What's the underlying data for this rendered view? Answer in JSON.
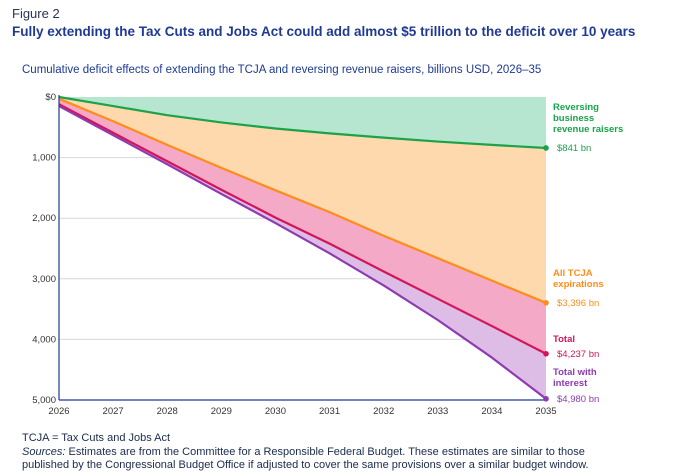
{
  "figure_label": "Figure 2",
  "title": "Fully extending the Tax Cuts and Jobs Act could add almost $5 trillion to the deficit over 10 years",
  "subtitle": "Cumulative deficit effects of extending the TCJA and reversing revenue raisers, billions USD, 2026–35",
  "note": "TCJA = Tax Cuts and Jobs Act",
  "sources_lead": "Sources:",
  "sources_line1": " Estimates are from the Committee for a Responsible Federal Budget. These estimates are similar to those",
  "sources_line2": "published by the Congressional Budget Office if adjusted to cover the same provisions over a similar budget window.",
  "chart_data": {
    "type": "area",
    "x": [
      2026,
      2027,
      2028,
      2029,
      2030,
      2031,
      2032,
      2033,
      2034,
      2035
    ],
    "y_tick_labels": [
      "$0",
      "1,000",
      "2,000",
      "3,000",
      "4,000",
      "5,000"
    ],
    "y_tick_values": [
      0,
      1000,
      2000,
      3000,
      4000,
      5000
    ],
    "ylim": [
      0,
      5000
    ],
    "y_inverted": true,
    "series": [
      {
        "name": "Reversing business revenue raisers",
        "label_lines": [
          "Reversing",
          "business",
          "revenue raisers"
        ],
        "end_label": "$841 bn",
        "color": "#1aa34a",
        "fill": "#b6e6cf",
        "values": [
          0,
          150,
          300,
          420,
          520,
          600,
          670,
          735,
          790,
          841
        ]
      },
      {
        "name": "All TCJA expirations",
        "label_lines": [
          "All TCJA",
          "expirations"
        ],
        "end_label": "$3,396 bn",
        "color": "#ff8c1a",
        "fill": "#fed9ad",
        "values": [
          30,
          400,
          790,
          1170,
          1540,
          1900,
          2290,
          2660,
          3030,
          3396
        ]
      },
      {
        "name": "Total",
        "label_lines": [
          "Total"
        ],
        "end_label": "$4,237 bn",
        "color": "#d4145a",
        "fill": "#f4aac6",
        "values": [
          120,
          590,
          1060,
          1530,
          1990,
          2420,
          2880,
          3330,
          3780,
          4237
        ]
      },
      {
        "name": "Total with interest",
        "label_lines": [
          "Total with",
          "interest"
        ],
        "end_label": "$4,980 bn",
        "color": "#8e3bb0",
        "fill": "#ddbde5",
        "values": [
          150,
          630,
          1110,
          1600,
          2080,
          2580,
          3110,
          3680,
          4300,
          4980
        ]
      }
    ]
  }
}
